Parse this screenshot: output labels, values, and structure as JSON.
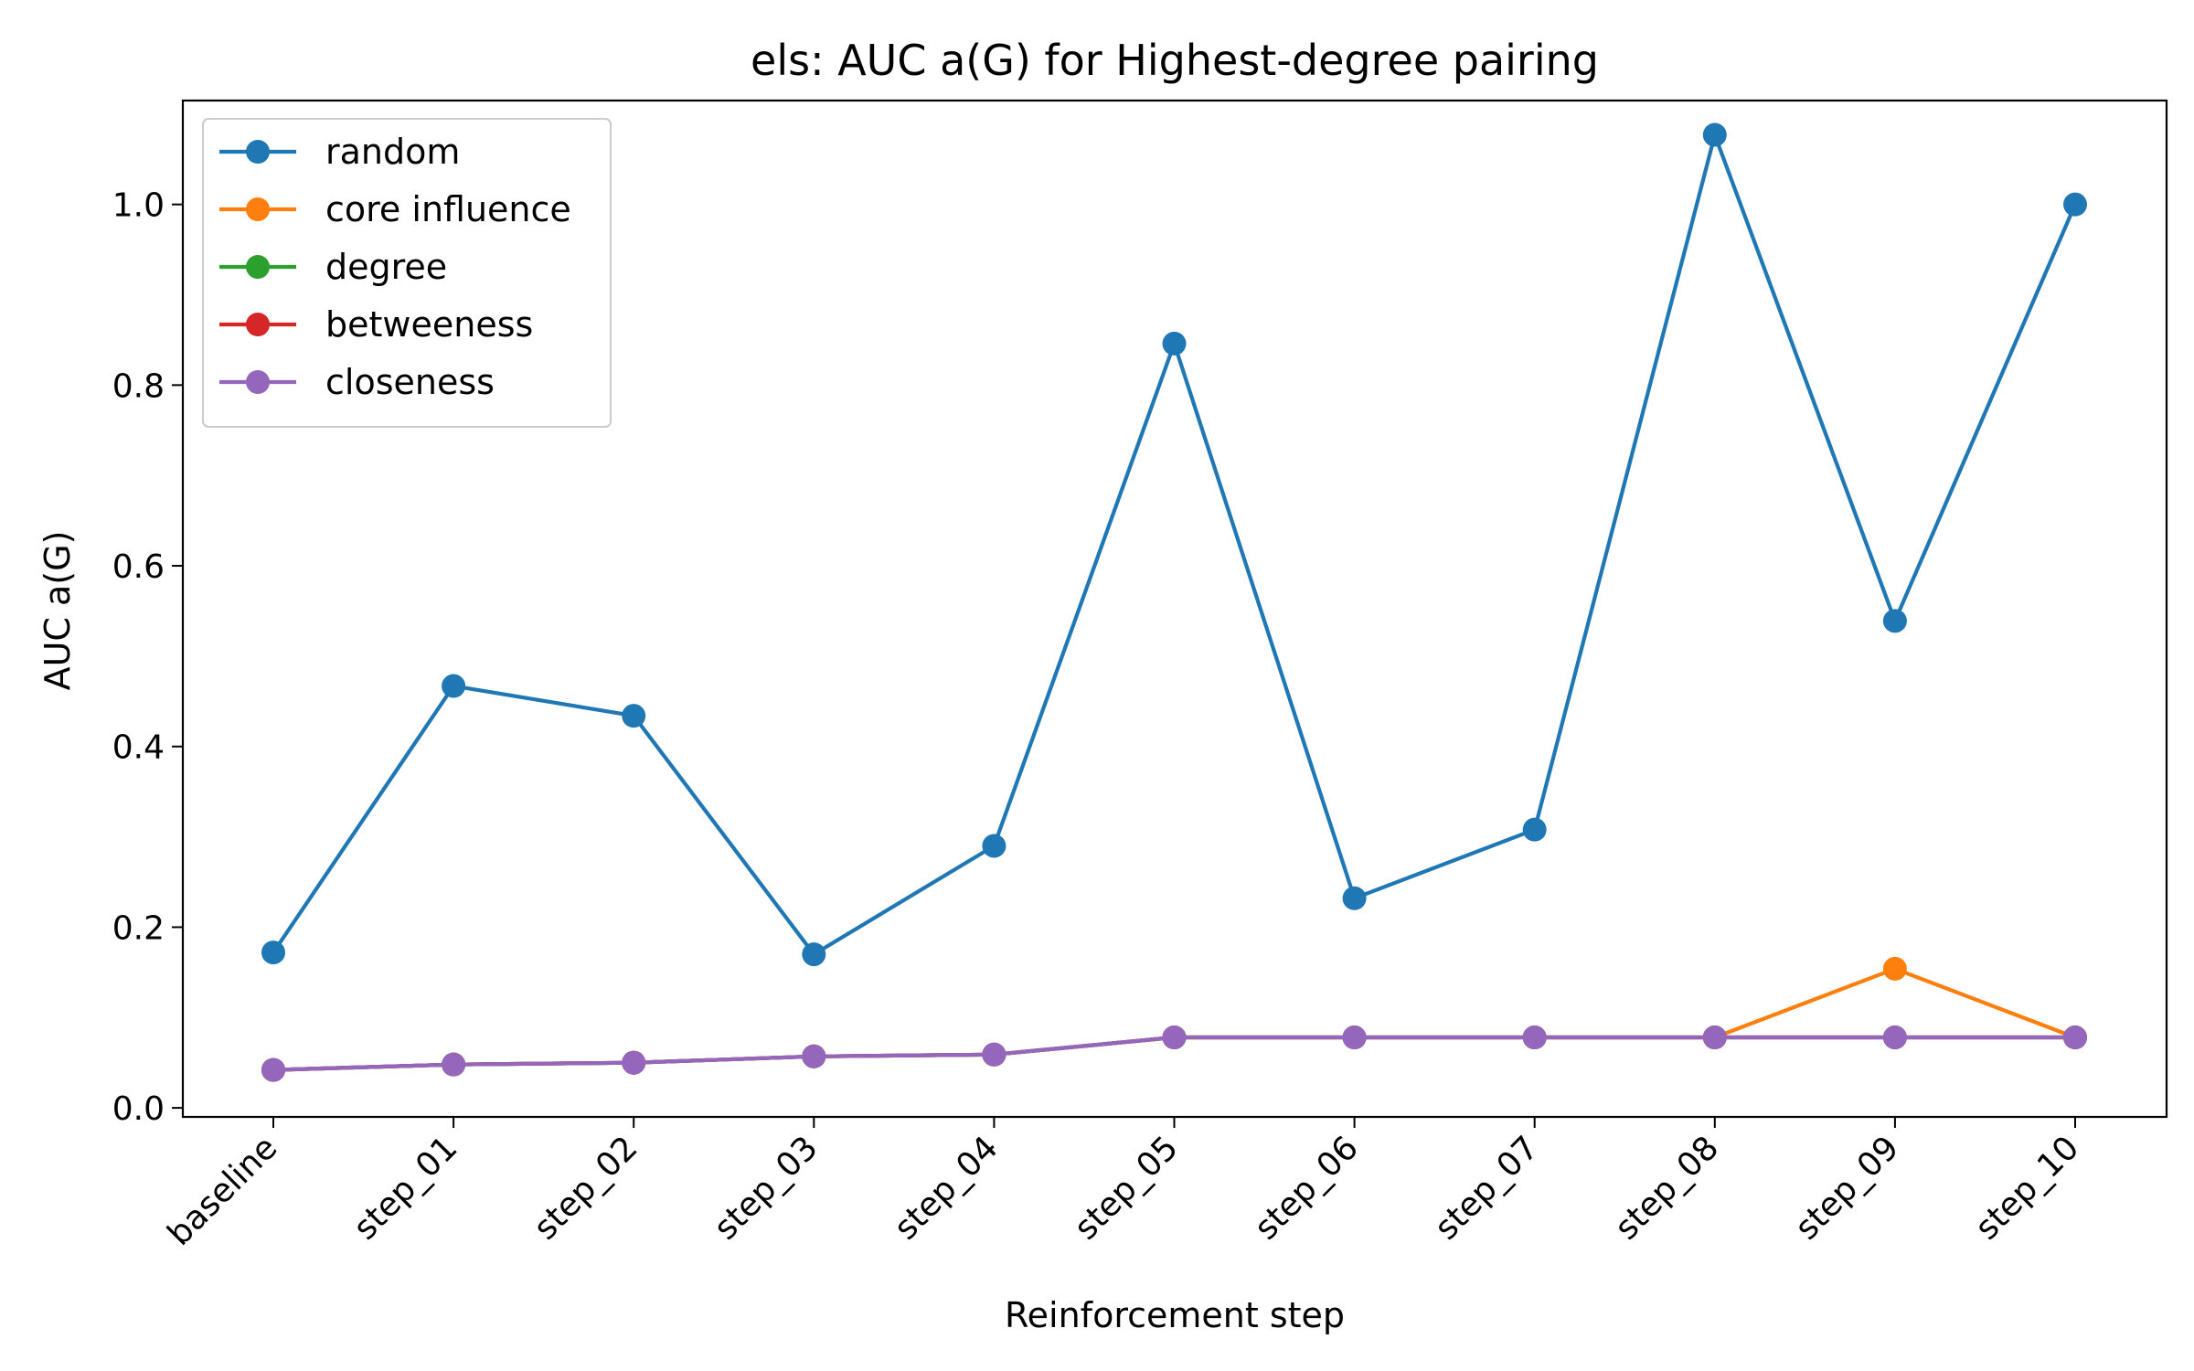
{
  "chart_data": {
    "type": "line",
    "title": "els: AUC a(G) for Highest-degree pairing",
    "xlabel": "Reinforcement step",
    "ylabel": "AUC a(G)",
    "categories": [
      "baseline",
      "step_01",
      "step_02",
      "step_03",
      "step_04",
      "step_05",
      "step_06",
      "step_07",
      "step_08",
      "step_09",
      "step_10"
    ],
    "ylim": [
      -0.01,
      1.115
    ],
    "yticks": [
      0.0,
      0.2,
      0.4,
      0.6,
      0.8,
      1.0
    ],
    "ytick_labels": [
      "0.0",
      "0.2",
      "0.4",
      "0.6",
      "0.8",
      "1.0"
    ],
    "grid": false,
    "legend_position": "top-left",
    "series": [
      {
        "name": "random",
        "color": "#1f77b4",
        "values": [
          0.172,
          0.467,
          0.434,
          0.17,
          0.29,
          0.846,
          0.232,
          0.308,
          1.077,
          0.539,
          1.0
        ]
      },
      {
        "name": "core influence",
        "color": "#ff7f0e",
        "values": [
          0.042,
          0.048,
          0.05,
          0.057,
          0.059,
          0.078,
          0.078,
          0.078,
          0.078,
          0.154,
          0.078
        ]
      },
      {
        "name": "degree",
        "color": "#2ca02c",
        "values": [
          0.042,
          0.048,
          0.05,
          0.057,
          0.059,
          0.078,
          0.078,
          0.078,
          0.078,
          0.078,
          0.078
        ]
      },
      {
        "name": "betweeness",
        "color": "#d62728",
        "values": [
          0.042,
          0.048,
          0.05,
          0.057,
          0.059,
          0.078,
          0.078,
          0.078,
          0.078,
          0.078,
          0.078
        ]
      },
      {
        "name": "closeness",
        "color": "#9467bd",
        "values": [
          0.042,
          0.048,
          0.05,
          0.057,
          0.059,
          0.078,
          0.078,
          0.078,
          0.078,
          0.078,
          0.078
        ]
      }
    ]
  }
}
